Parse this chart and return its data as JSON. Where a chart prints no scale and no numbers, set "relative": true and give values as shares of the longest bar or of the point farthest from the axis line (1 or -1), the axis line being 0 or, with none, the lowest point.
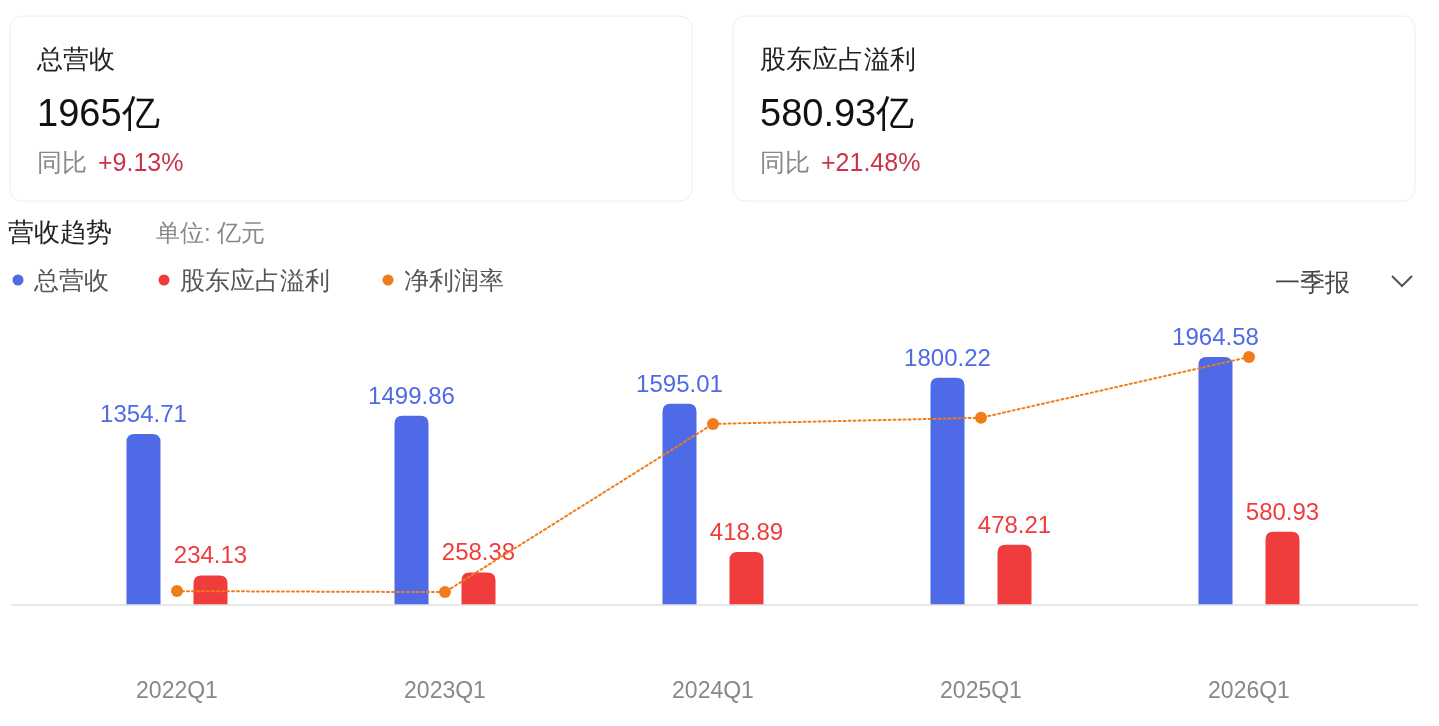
{
  "chart_data": [
    {
      "type": "other",
      "title": "总营收",
      "annotations": [
        "1965亿",
        "同比",
        "+9.13%"
      ]
    },
    {
      "type": "other",
      "title": "股东应占溢利",
      "annotations": [
        "580.93亿",
        "同比",
        "+21.48%"
      ]
    },
    {
      "type": "bar",
      "title": "营收趋势",
      "subtitle": "单位: 亿元",
      "annotations": [
        "一季报"
      ],
      "categories": [
        "2022Q1",
        "2023Q1",
        "2024Q1",
        "2025Q1",
        "2026Q1"
      ],
      "legend": "top left",
      "data_labels": true,
      "series": [
        {
          "name": "总营收",
          "color": "#4f6ae6",
          "values": [
            1354.71,
            1499.86,
            1595.01,
            1800.22,
            1964.58
          ]
        },
        {
          "name": "股东应占溢利",
          "color": "#f03c3c",
          "values": [
            234.13,
            258.38,
            418.89,
            478.21,
            580.93
          ]
        }
      ]
    },
    {
      "type": "line",
      "relative": true,
      "legend": "top left",
      "marker": "circle",
      "line_style": "dotted",
      "categories": [
        null,
        null,
        null,
        null,
        null
      ],
      "series": [
        {
          "name": "净利润率",
          "color": "#f07d1a",
          "values": [
            0.056,
            0.052,
            0.73,
            0.755,
            1
          ]
        }
      ]
    }
  ]
}
